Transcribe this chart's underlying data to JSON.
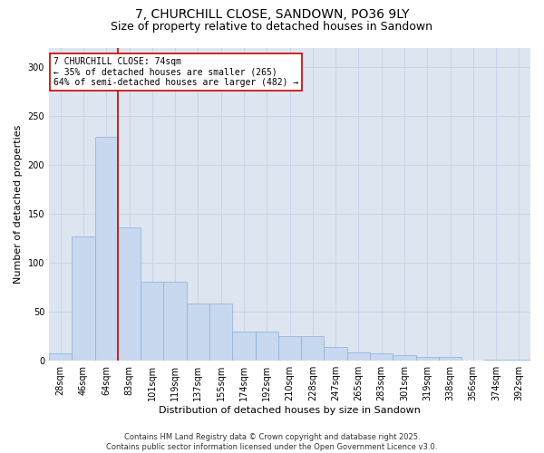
{
  "title1": "7, CHURCHILL CLOSE, SANDOWN, PO36 9LY",
  "title2": "Size of property relative to detached houses in Sandown",
  "xlabel": "Distribution of detached houses by size in Sandown",
  "ylabel": "Number of detached properties",
  "categories": [
    "28sqm",
    "46sqm",
    "64sqm",
    "83sqm",
    "101sqm",
    "119sqm",
    "137sqm",
    "155sqm",
    "174sqm",
    "192sqm",
    "210sqm",
    "228sqm",
    "247sqm",
    "265sqm",
    "283sqm",
    "301sqm",
    "319sqm",
    "338sqm",
    "356sqm",
    "374sqm",
    "392sqm"
  ],
  "values": [
    7,
    127,
    229,
    136,
    80,
    80,
    58,
    58,
    29,
    29,
    25,
    25,
    14,
    8,
    7,
    5,
    3,
    3,
    0,
    1,
    1
  ],
  "bar_color": "#c8d8ee",
  "bar_edge_color": "#8ab0d8",
  "vline_x": 2.5,
  "vline_color": "#cc0000",
  "annotation_text": "7 CHURCHILL CLOSE: 74sqm\n← 35% of detached houses are smaller (265)\n64% of semi-detached houses are larger (482) →",
  "annotation_box_facecolor": "#ffffff",
  "annotation_box_edgecolor": "#cc0000",
  "ylim": [
    0,
    320
  ],
  "yticks": [
    0,
    50,
    100,
    150,
    200,
    250,
    300
  ],
  "grid_color": "#c8d4e8",
  "axes_facecolor": "#dde5f0",
  "title_fontsize": 10,
  "subtitle_fontsize": 9,
  "axis_label_fontsize": 8,
  "tick_fontsize": 7,
  "annot_fontsize": 7,
  "footer1": "Contains HM Land Registry data © Crown copyright and database right 2025.",
  "footer2": "Contains public sector information licensed under the Open Government Licence v3.0.",
  "footer_fontsize": 6
}
